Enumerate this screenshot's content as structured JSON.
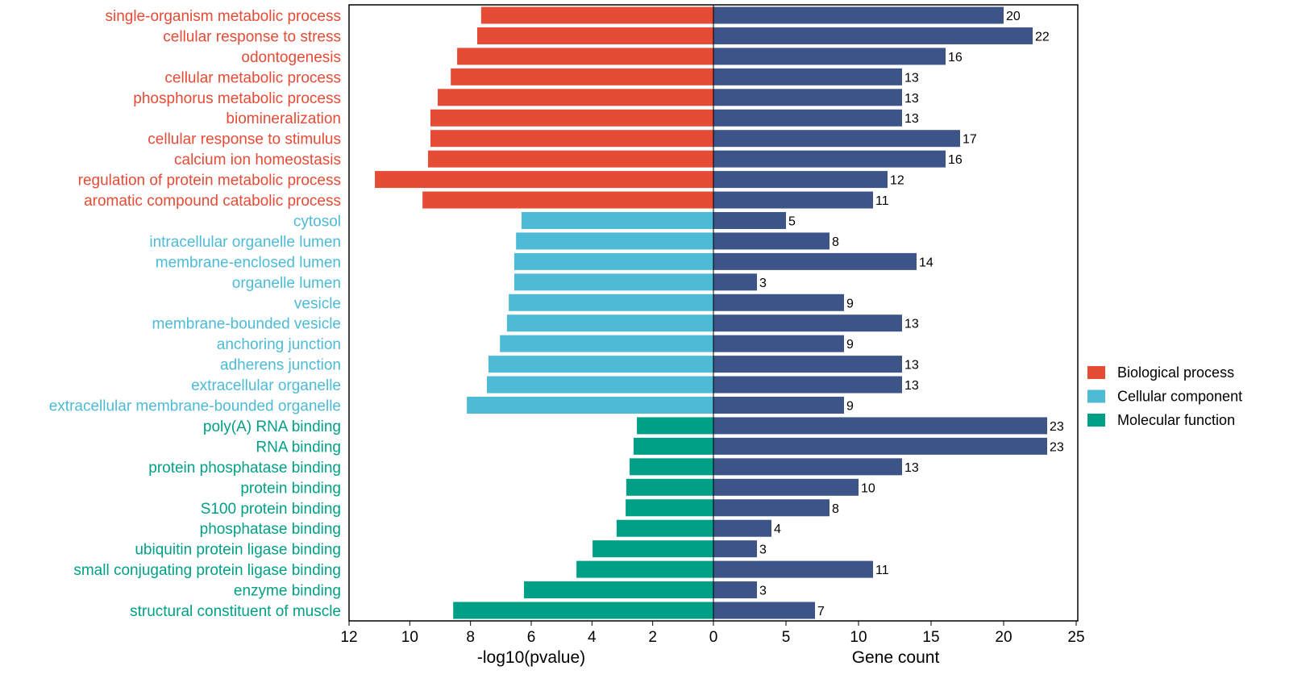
{
  "chart_data": {
    "type": "bar",
    "subtype": "diverging-horizontal",
    "categories": [
      "single-organism metabolic process",
      "cellular response to stress",
      "odontogenesis",
      "cellular metabolic process",
      "phosphorus metabolic process",
      "biomineralization",
      "cellular response to stimulus",
      "calcium ion homeostasis",
      "regulation of protein metabolic process",
      "aromatic compound catabolic process",
      "cytosol",
      "intracellular organelle lumen",
      "membrane-enclosed lumen",
      "organelle lumen",
      "vesicle",
      "membrane-bounded vesicle",
      "anchoring junction",
      "adherens junction",
      "extracellular organelle",
      "extracellular membrane-bounded organelle",
      "poly(A) RNA binding",
      "RNA binding",
      "protein phosphatase binding",
      "protein binding",
      "S100 protein binding",
      "phosphatase binding",
      "ubiquitin protein ligase binding",
      "small conjugating protein ligase binding",
      "enzyme binding",
      "structural constituent of muscle"
    ],
    "groups": [
      0,
      0,
      0,
      0,
      0,
      0,
      0,
      0,
      0,
      0,
      1,
      1,
      1,
      1,
      1,
      1,
      1,
      1,
      1,
      1,
      2,
      2,
      2,
      2,
      2,
      2,
      2,
      2,
      2,
      2
    ],
    "series": [
      {
        "name": "-log10(pvalue)",
        "values": [
          7.65,
          7.78,
          8.44,
          8.65,
          9.08,
          9.32,
          9.32,
          9.4,
          11.15,
          9.58,
          6.32,
          6.5,
          6.56,
          6.56,
          6.74,
          6.8,
          7.03,
          7.41,
          7.46,
          8.12,
          2.52,
          2.63,
          2.76,
          2.87,
          2.89,
          3.19,
          3.98,
          4.51,
          6.24,
          8.57
        ]
      },
      {
        "name": "Gene count",
        "values": [
          20,
          22,
          16,
          13,
          13,
          13,
          17,
          16,
          12,
          11,
          5,
          8,
          14,
          3,
          9,
          13,
          9,
          13,
          13,
          9,
          23,
          23,
          13,
          10,
          8,
          4,
          3,
          11,
          3,
          7
        ],
        "color": "#3C5488"
      }
    ],
    "legend": {
      "position": "right",
      "entries": [
        {
          "label": "Biological process",
          "color": "#E64B35"
        },
        {
          "label": "Cellular component",
          "color": "#4DBBD5"
        },
        {
          "label": "Molecular function",
          "color": "#00A087"
        }
      ]
    },
    "left_axis": {
      "xlabel": "-log10(pvalue)",
      "xlim": [
        12,
        0
      ],
      "ticks": [
        "12",
        "10",
        "8",
        "6",
        "4",
        "2",
        "0"
      ]
    },
    "right_axis": {
      "xlabel": "Gene count",
      "xlim": [
        0,
        25
      ],
      "ticks": [
        "0",
        "5",
        "10",
        "15",
        "20",
        "25"
      ]
    },
    "grid": false
  }
}
